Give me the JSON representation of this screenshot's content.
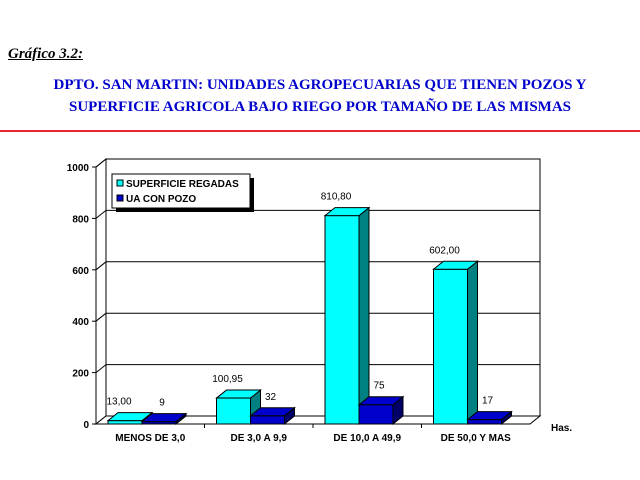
{
  "header": {
    "figure_label": "Gráfico 3.2:",
    "title_line1": "DPTO. SAN MARTIN: UNIDADES AGROPECUARIAS QUE TIENEN POZOS Y",
    "title_line2": "SUPERFICIE AGRICOLA BAJO RIEGO POR TAMAÑO DE LAS MISMAS"
  },
  "chart_data": {
    "type": "bar",
    "categories": [
      "MENOS DE 3,0",
      "DE 3,0 A 9,9",
      "DE 10,0 A 49,9",
      "DE 50,0 Y MAS"
    ],
    "series": [
      {
        "name": "SUPERFICIE REGADAS",
        "values": [
          13.0,
          100.95,
          810.8,
          602.0
        ],
        "labels": [
          "13,00",
          "100,95",
          "810,80",
          "602,00"
        ],
        "color": "#00ffff",
        "side_color": "#008080"
      },
      {
        "name": "UA CON POZO",
        "values": [
          9,
          32,
          75,
          17
        ],
        "labels": [
          "9",
          "32",
          "75",
          "17"
        ],
        "color": "#0000cc",
        "side_color": "#000066"
      }
    ],
    "xlabel": "Has.",
    "ylabel": "",
    "ylim": [
      0,
      1000
    ],
    "yticks": [
      0,
      200,
      400,
      600,
      800,
      1000
    ],
    "grid": true,
    "legend_position": "top-left",
    "three_d": true
  }
}
